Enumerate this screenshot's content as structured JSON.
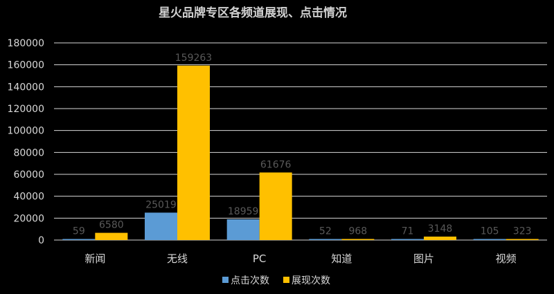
{
  "chart_data": {
    "type": "bar",
    "title": "星火品牌专区各频道展现、点击情况",
    "categories": [
      "新闻",
      "无线",
      "PC",
      "知道",
      "图片",
      "视频"
    ],
    "series": [
      {
        "name": "点击次数",
        "color": "#5b9bd5",
        "values": [
          59,
          25019,
          18959,
          52,
          71,
          105
        ]
      },
      {
        "name": "展现次数",
        "color": "#ffc000",
        "values": [
          6580,
          159263,
          61676,
          968,
          3148,
          323
        ]
      }
    ],
    "yticks": [
      0,
      20000,
      40000,
      60000,
      80000,
      100000,
      120000,
      140000,
      160000,
      180000
    ],
    "ylim": [
      0,
      180000
    ],
    "grid": true,
    "legend_position": "bottom"
  }
}
